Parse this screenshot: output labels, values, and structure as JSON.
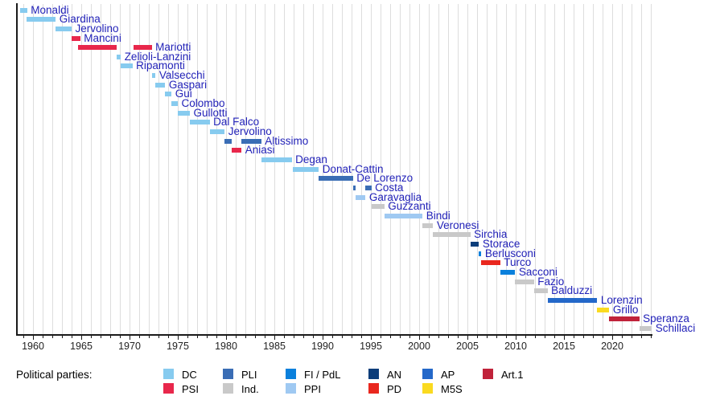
{
  "chart_data": {
    "type": "gantt-timeline",
    "description": "Timeline of officeholders colored by political party",
    "x_axis": {
      "range_start": 1958.33,
      "range_end": 2024.1,
      "major_ticks": [
        1960,
        1965,
        1970,
        1975,
        1980,
        1985,
        1990,
        1995,
        2000,
        2005,
        2010,
        2015,
        2020
      ],
      "minor_tick_step": 1,
      "gridlines": "yearly"
    },
    "legend": {
      "heading": "Political parties:",
      "items": [
        {
          "label": "DC",
          "color": "#87cbef"
        },
        {
          "label": "PSI",
          "color": "#e8274b"
        },
        {
          "label": "PLI",
          "color": "#3a6db5"
        },
        {
          "label": "Ind.",
          "color": "#c9c9c9"
        },
        {
          "label": "FI / PdL",
          "color": "#0a80dc"
        },
        {
          "label": "PPI",
          "color": "#9fc9f2"
        },
        {
          "label": "AN",
          "color": "#0c3d7a"
        },
        {
          "label": "PD",
          "color": "#e9271e"
        },
        {
          "label": "AP",
          "color": "#2468c9"
        },
        {
          "label": "M5S",
          "color": "#fada20"
        },
        {
          "label": "Art.1",
          "color": "#c0223a"
        }
      ]
    },
    "entries": [
      {
        "name": "Monaldi",
        "party": "DC",
        "terms": [
          [
            1958.7,
            1959.4
          ]
        ]
      },
      {
        "name": "Giardina",
        "party": "DC",
        "terms": [
          [
            1959.35,
            1962.35
          ]
        ]
      },
      {
        "name": "Jervolino",
        "party": "DC",
        "terms": [
          [
            1962.35,
            1964.0
          ]
        ]
      },
      {
        "name": "Mancini",
        "party": "PSI",
        "terms": [
          [
            1964.0,
            1964.9
          ]
        ]
      },
      {
        "name": "Mariotti",
        "party": "PSI",
        "terms": [
          [
            1964.7,
            1968.7
          ],
          [
            1970.4,
            1972.3
          ]
        ]
      },
      {
        "name": "Zelioli-Lanzini",
        "party": "DC",
        "terms": [
          [
            1968.7,
            1969.1
          ]
        ]
      },
      {
        "name": "Ripamonti",
        "party": "DC",
        "terms": [
          [
            1969.1,
            1970.3
          ]
        ]
      },
      {
        "name": "Valsecchi",
        "party": "DC",
        "terms": [
          [
            1972.3,
            1972.7
          ]
        ]
      },
      {
        "name": "Gaspari",
        "party": "DC",
        "terms": [
          [
            1972.7,
            1973.7
          ]
        ]
      },
      {
        "name": "Gui",
        "party": "DC",
        "terms": [
          [
            1973.7,
            1974.35
          ]
        ]
      },
      {
        "name": "Colombo",
        "party": "DC",
        "terms": [
          [
            1974.35,
            1975.0
          ]
        ]
      },
      {
        "name": "Gullotti",
        "party": "DC",
        "terms": [
          [
            1975.0,
            1976.25
          ]
        ]
      },
      {
        "name": "Dal Falco",
        "party": "DC",
        "terms": [
          [
            1976.25,
            1978.3
          ]
        ]
      },
      {
        "name": "Jervolino",
        "party": "DC",
        "terms": [
          [
            1978.3,
            1979.85
          ]
        ]
      },
      {
        "name": "Altissimo",
        "party": "PLI",
        "terms": [
          [
            1979.85,
            1980.55
          ],
          [
            1981.6,
            1983.65
          ]
        ]
      },
      {
        "name": "Aniasi",
        "party": "PSI",
        "terms": [
          [
            1980.55,
            1981.6
          ]
        ]
      },
      {
        "name": "Degan",
        "party": "DC",
        "terms": [
          [
            1983.65,
            1986.8
          ]
        ]
      },
      {
        "name": "Donat-Cattin",
        "party": "DC",
        "terms": [
          [
            1986.9,
            1989.6
          ]
        ]
      },
      {
        "name": "De Lorenzo",
        "party": "PLI",
        "terms": [
          [
            1989.6,
            1993.15
          ]
        ]
      },
      {
        "name": "Costa",
        "party": "PLI",
        "terms": [
          [
            1993.15,
            1993.45
          ],
          [
            1994.45,
            1995.05
          ]
        ]
      },
      {
        "name": "Garavaglia",
        "party": "PPI",
        "terms": [
          [
            1993.45,
            1994.45
          ]
        ]
      },
      {
        "name": "Guzzanti",
        "party": "Ind.",
        "terms": [
          [
            1995.05,
            1996.4
          ]
        ]
      },
      {
        "name": "Bindi",
        "party": "PPI",
        "terms": [
          [
            1996.4,
            2000.35
          ]
        ]
      },
      {
        "name": "Veronesi",
        "party": "Ind.",
        "terms": [
          [
            2000.35,
            2001.45
          ]
        ]
      },
      {
        "name": "Sirchia",
        "party": "Ind.",
        "terms": [
          [
            2001.45,
            2005.3
          ]
        ]
      },
      {
        "name": "Storace",
        "party": "AN",
        "terms": [
          [
            2005.3,
            2006.2
          ]
        ]
      },
      {
        "name": "Berlusconi",
        "party": "FI / PdL",
        "terms": [
          [
            2006.2,
            2006.45
          ]
        ]
      },
      {
        "name": "Turco",
        "party": "PD",
        "terms": [
          [
            2006.45,
            2008.4
          ]
        ]
      },
      {
        "name": "Sacconi",
        "party": "FI / PdL",
        "terms": [
          [
            2008.4,
            2009.95
          ]
        ]
      },
      {
        "name": "Fazio",
        "party": "Ind.",
        "terms": [
          [
            2009.95,
            2011.9
          ]
        ]
      },
      {
        "name": "Balduzzi",
        "party": "Ind.",
        "terms": [
          [
            2011.9,
            2013.3
          ]
        ]
      },
      {
        "name": "Lorenzin",
        "party": "AP",
        "terms": [
          [
            2013.3,
            2018.45
          ]
        ]
      },
      {
        "name": "Grillo",
        "party": "M5S",
        "terms": [
          [
            2018.45,
            2019.7
          ]
        ]
      },
      {
        "name": "Speranza",
        "party": "Art.1",
        "terms": [
          [
            2019.7,
            2022.8
          ]
        ]
      },
      {
        "name": "Schillaci",
        "party": "Ind.",
        "terms": [
          [
            2022.8,
            2024.1
          ]
        ]
      }
    ]
  }
}
